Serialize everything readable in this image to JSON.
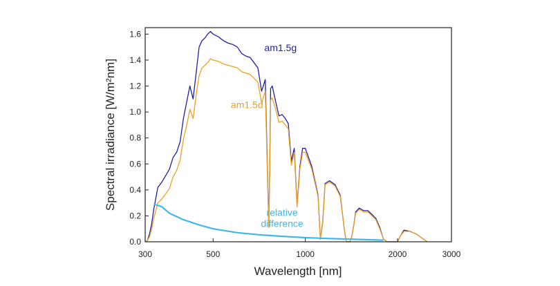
{
  "chart_data": {
    "type": "line",
    "title": "",
    "xlabel": "Wavelength [nm]",
    "ylabel": "Spectral irradiance  [W/m²nm]",
    "x_scale": "log",
    "xlim": [
      300,
      3000
    ],
    "ylim": [
      0,
      1.65
    ],
    "x_ticks": [
      300,
      500,
      1000,
      2000,
      3000
    ],
    "x_tick_labels": [
      "300",
      "500",
      "1000",
      "2000",
      "3000"
    ],
    "y_ticks": [
      0,
      0.2,
      0.4,
      0.6,
      0.8,
      1.0,
      1.2,
      1.4,
      1.6
    ],
    "y_tick_labels": [
      "0.0",
      "0.2",
      "0.4",
      "0.6",
      "0.8",
      "1.0",
      "1.2",
      "1.4",
      "1.6"
    ],
    "grid": false,
    "legend": "none",
    "series": [
      {
        "name": "am1.5g",
        "label_text": "am1.5g",
        "color": "#1f1fa8",
        "x": [
          300,
          305,
          310,
          315,
          320,
          330,
          340,
          350,
          360,
          370,
          380,
          390,
          400,
          410,
          420,
          430,
          440,
          450,
          460,
          470,
          480,
          490,
          500,
          520,
          540,
          560,
          580,
          600,
          620,
          640,
          660,
          680,
          700,
          720,
          740,
          760,
          765,
          770,
          780,
          800,
          820,
          840,
          860,
          880,
          900,
          920,
          940,
          960,
          980,
          1000,
          1050,
          1100,
          1120,
          1140,
          1160,
          1200,
          1250,
          1300,
          1340,
          1360,
          1380,
          1400,
          1420,
          1440,
          1460,
          1500,
          1550,
          1600,
          1650,
          1700,
          1750,
          1800,
          1850,
          1900,
          1950,
          2000,
          2050,
          2100,
          2200,
          2300,
          2400,
          2500
        ],
        "y": [
          0.0,
          0.01,
          0.06,
          0.14,
          0.25,
          0.42,
          0.46,
          0.51,
          0.56,
          0.65,
          0.69,
          0.77,
          0.95,
          1.08,
          1.2,
          1.1,
          1.3,
          1.5,
          1.55,
          1.57,
          1.6,
          1.62,
          1.6,
          1.58,
          1.55,
          1.53,
          1.52,
          1.5,
          1.45,
          1.43,
          1.42,
          1.38,
          1.34,
          1.16,
          1.25,
          0.12,
          0.55,
          1.18,
          1.2,
          1.08,
          0.97,
          0.98,
          0.95,
          0.91,
          0.62,
          0.72,
          0.28,
          0.58,
          0.72,
          0.72,
          0.58,
          0.36,
          0.02,
          0.15,
          0.45,
          0.47,
          0.44,
          0.36,
          0.1,
          0.0,
          0.0,
          0.0,
          0.05,
          0.13,
          0.23,
          0.26,
          0.24,
          0.24,
          0.21,
          0.18,
          0.11,
          0.02,
          0.0,
          0.0,
          0.0,
          0.0,
          0.05,
          0.09,
          0.08,
          0.06,
          0.03,
          0.0
        ]
      },
      {
        "name": "am1.5d",
        "label_text": "am1.5d",
        "color": "#f0a020",
        "x": [
          300,
          305,
          310,
          315,
          320,
          330,
          340,
          350,
          360,
          370,
          380,
          390,
          400,
          410,
          420,
          430,
          440,
          450,
          460,
          470,
          480,
          490,
          500,
          520,
          540,
          560,
          580,
          600,
          620,
          640,
          660,
          680,
          700,
          720,
          740,
          760,
          765,
          770,
          780,
          800,
          820,
          840,
          860,
          880,
          900,
          920,
          940,
          960,
          980,
          1000,
          1050,
          1100,
          1120,
          1140,
          1160,
          1200,
          1250,
          1300,
          1340,
          1360,
          1380,
          1400,
          1420,
          1440,
          1460,
          1500,
          1550,
          1600,
          1650,
          1700,
          1750,
          1800,
          1850,
          1900,
          1950,
          2000,
          2050,
          2100,
          2200,
          2300,
          2400,
          2500
        ],
        "y": [
          0.0,
          0.01,
          0.04,
          0.1,
          0.18,
          0.3,
          0.33,
          0.37,
          0.41,
          0.5,
          0.55,
          0.63,
          0.79,
          0.9,
          1.02,
          0.95,
          1.13,
          1.28,
          1.34,
          1.36,
          1.38,
          1.41,
          1.4,
          1.39,
          1.37,
          1.36,
          1.35,
          1.34,
          1.31,
          1.3,
          1.29,
          1.26,
          1.23,
          1.07,
          1.16,
          0.11,
          0.51,
          1.09,
          1.11,
          1.02,
          0.92,
          0.93,
          0.9,
          0.87,
          0.59,
          0.69,
          0.27,
          0.56,
          0.69,
          0.69,
          0.56,
          0.35,
          0.02,
          0.14,
          0.44,
          0.46,
          0.43,
          0.35,
          0.1,
          0.0,
          0.0,
          0.0,
          0.05,
          0.13,
          0.22,
          0.25,
          0.23,
          0.23,
          0.2,
          0.17,
          0.1,
          0.02,
          0.0,
          0.0,
          0.0,
          0.0,
          0.05,
          0.08,
          0.08,
          0.06,
          0.03,
          0.0
        ]
      },
      {
        "name": "relative difference",
        "label_text": "relative\ndifference",
        "color": "#3fb6ee",
        "x": [
          320,
          340,
          360,
          400,
          450,
          500,
          600,
          700,
          800,
          900,
          1000,
          1200,
          1400,
          1600,
          1800
        ],
        "y": [
          0.29,
          0.27,
          0.22,
          0.17,
          0.13,
          0.1,
          0.07,
          0.055,
          0.045,
          0.038,
          0.032,
          0.025,
          0.02,
          0.016,
          0.012
        ]
      }
    ]
  }
}
